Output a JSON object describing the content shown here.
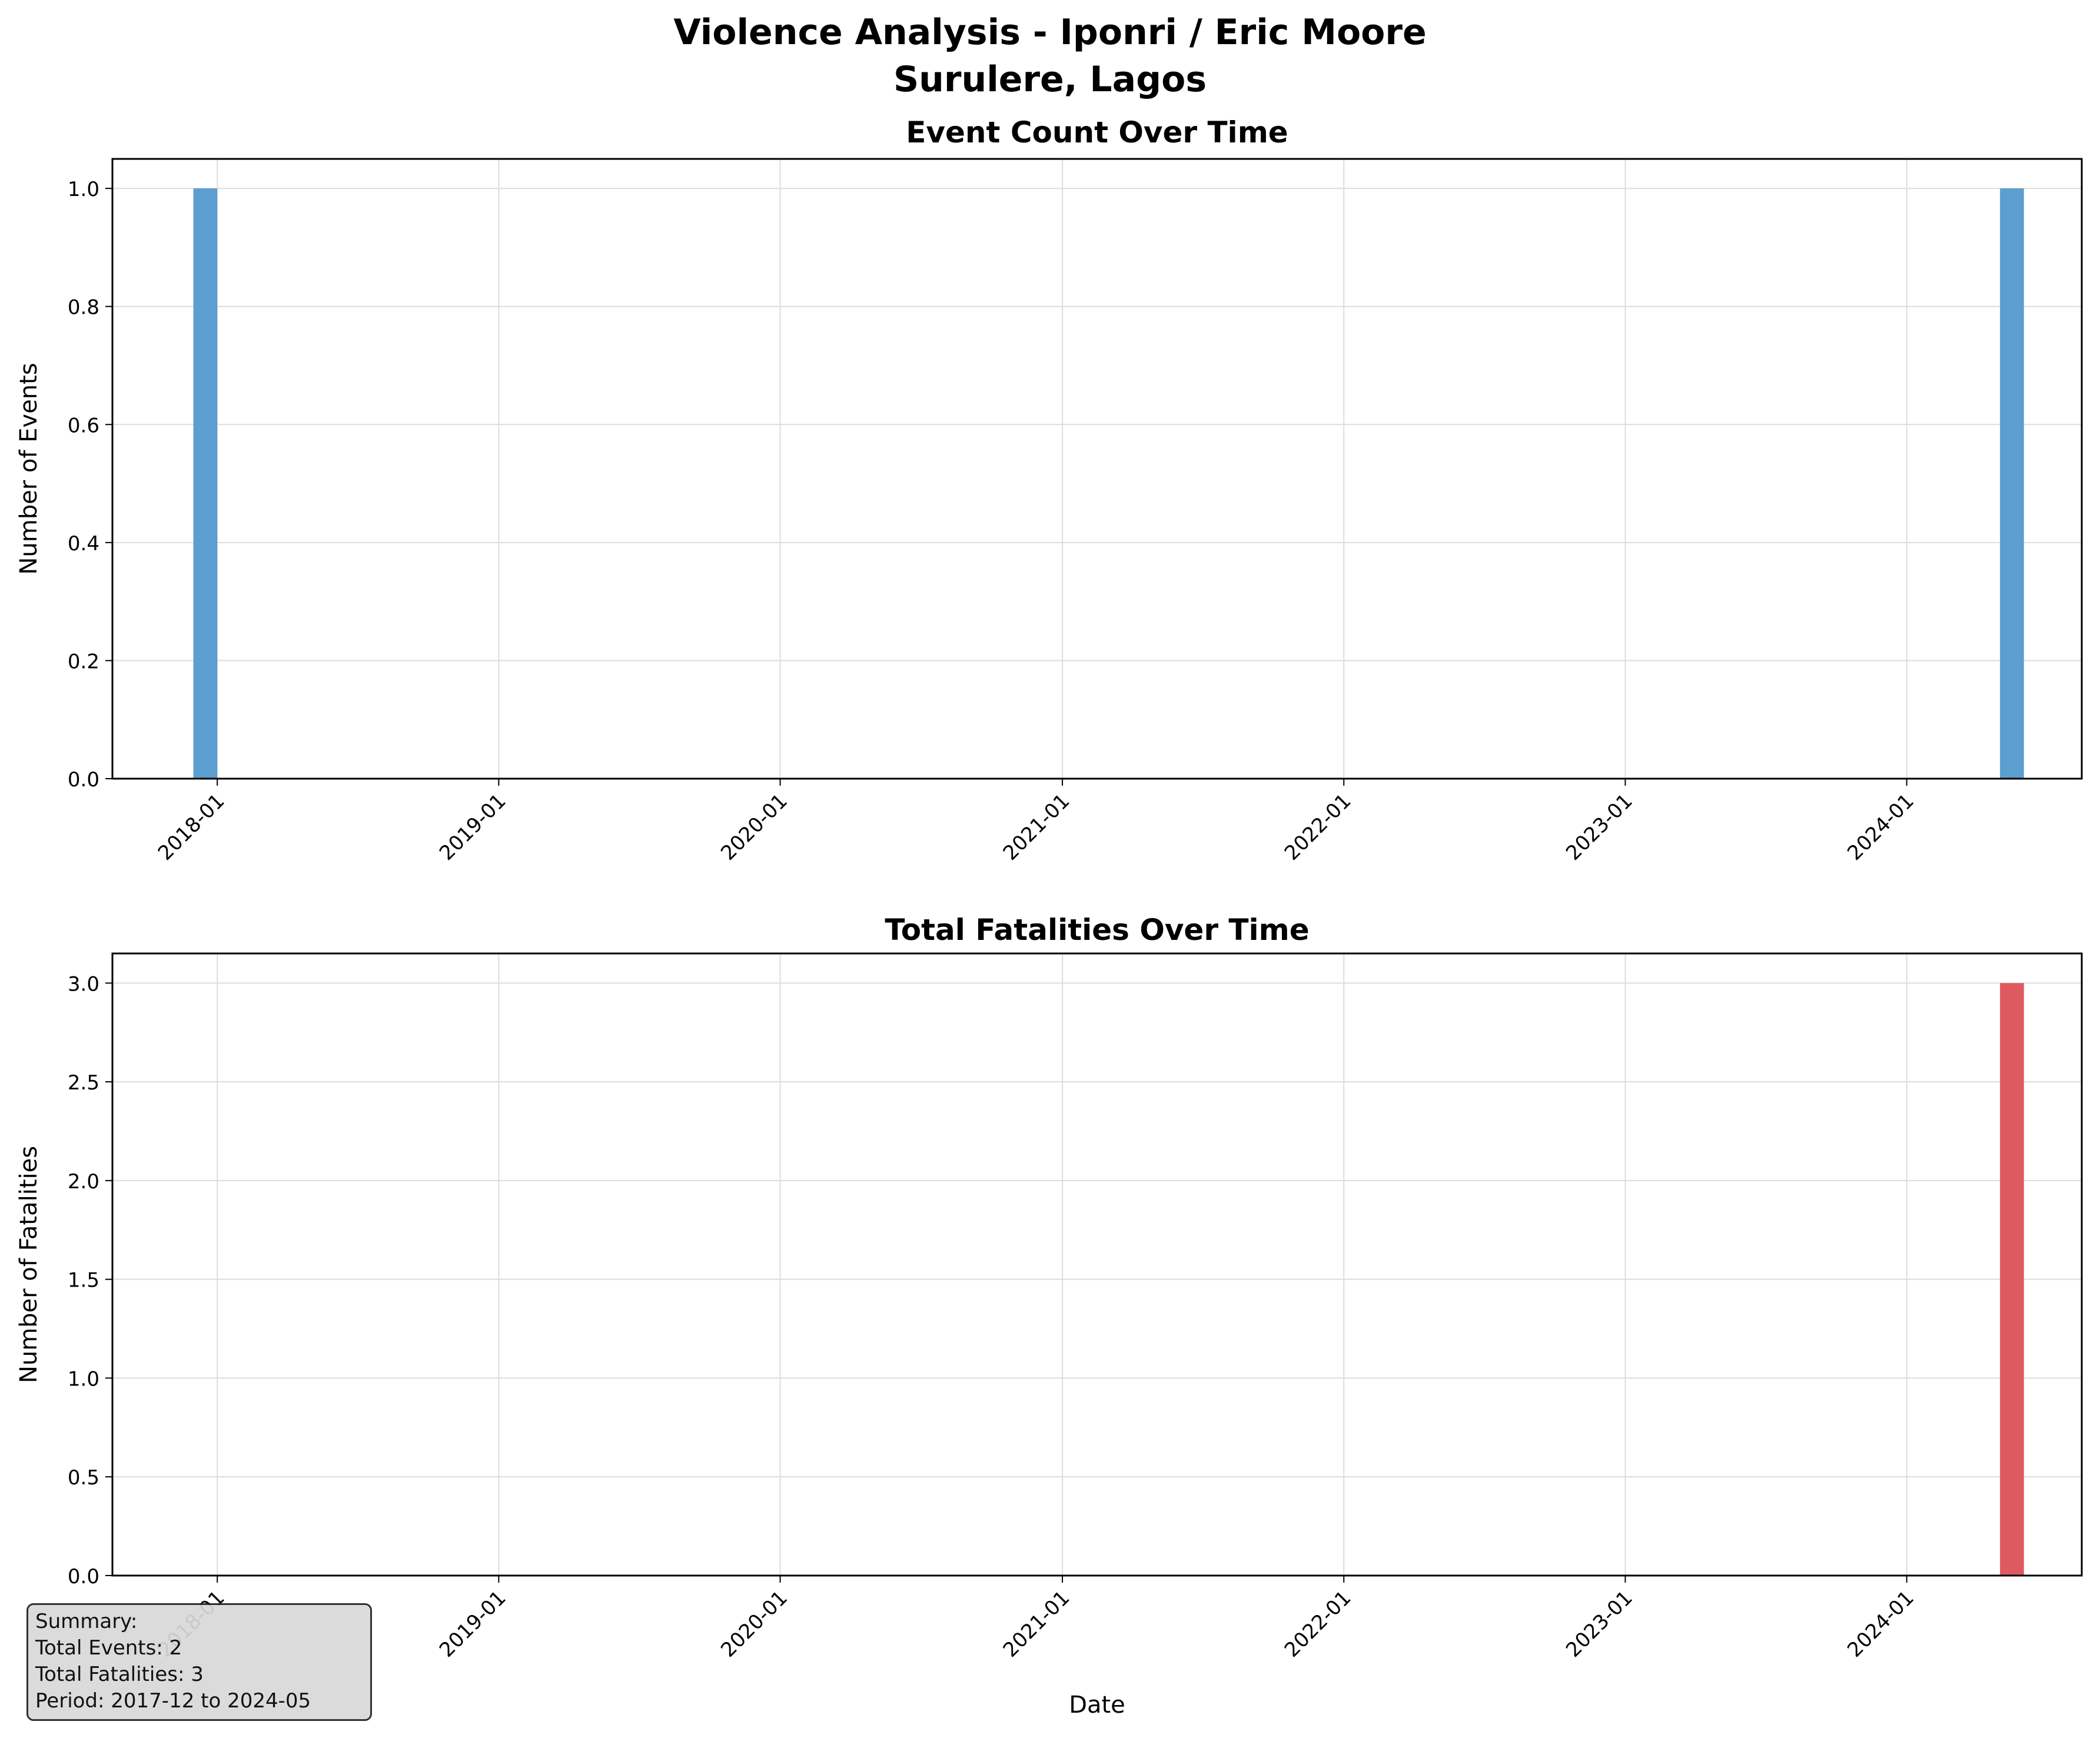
{
  "figure": {
    "title_line1": "Violence Analysis - Iponri  /  Eric Moore",
    "title_line2": "Surulere, Lagos"
  },
  "summary": {
    "heading": "Summary:",
    "total_events": "Total Events: 2",
    "total_fatalities": "Total Fatalities: 3",
    "period": "Period: 2017-12 to 2024-05"
  },
  "chart_data": [
    {
      "type": "bar",
      "title": "Event Count Over Time",
      "xlabel": "",
      "ylabel": "Number of Events",
      "x": [
        "2017-12",
        "2024-05"
      ],
      "values": [
        1,
        1
      ],
      "ylim": [
        0,
        1.05
      ],
      "yticks": [
        0.0,
        0.2,
        0.4,
        0.6,
        0.8,
        1.0
      ],
      "ytick_labels": [
        "0.0",
        "0.2",
        "0.4",
        "0.6",
        "0.8",
        "1.0"
      ],
      "xlim": [
        "2017-08-18",
        "2024-08-15"
      ],
      "xticks": [
        "2018-01",
        "2019-01",
        "2020-01",
        "2021-01",
        "2022-01",
        "2023-01",
        "2024-01"
      ],
      "color": "#5b9ecf",
      "grid": true
    },
    {
      "type": "bar",
      "title": "Total Fatalities Over Time",
      "xlabel": "Date",
      "ylabel": "Number of Fatalities",
      "x": [
        "2017-12",
        "2024-05"
      ],
      "values": [
        0,
        3
      ],
      "ylim": [
        0,
        3.15
      ],
      "yticks": [
        0.0,
        0.5,
        1.0,
        1.5,
        2.0,
        2.5,
        3.0
      ],
      "ytick_labels": [
        "0.0",
        "0.5",
        "1.0",
        "1.5",
        "2.0",
        "2.5",
        "3.0"
      ],
      "xlim": [
        "2017-08-18",
        "2024-08-15"
      ],
      "xticks": [
        "2018-01",
        "2019-01",
        "2020-01",
        "2021-01",
        "2022-01",
        "2023-01",
        "2024-01"
      ],
      "color": "#de5a60",
      "grid": true
    }
  ]
}
